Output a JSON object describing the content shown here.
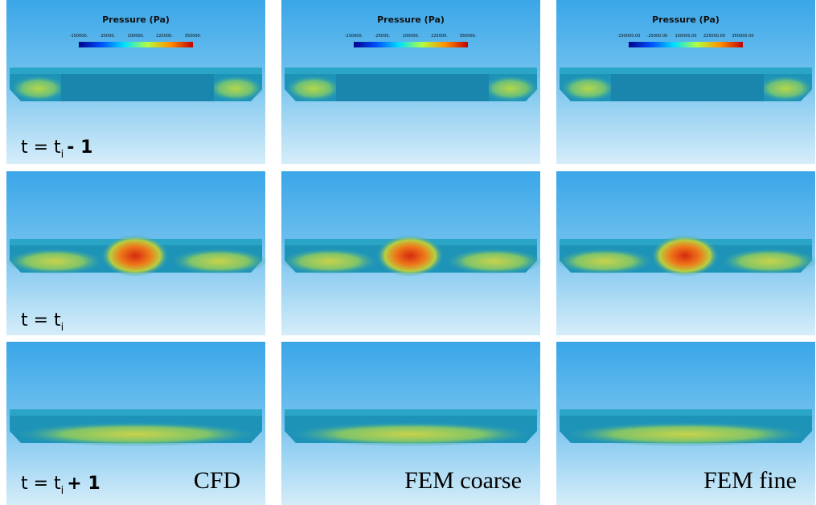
{
  "colorbars": [
    {
      "title": "Pressure (Pa)",
      "ticks": [
        "-150000.",
        "-25000.",
        "100000.",
        "225000.",
        "350000."
      ]
    },
    {
      "title": "Pressure (Pa)",
      "ticks": [
        "-150000.",
        "-25000.",
        "100000.",
        "225000.",
        "350000."
      ]
    },
    {
      "title": "Pressure (Pa)",
      "ticks": [
        "-150000.00",
        "-25000.00",
        "100000.00",
        "225000.00",
        "350000.00"
      ]
    }
  ],
  "row_labels": [
    {
      "main": "t = t",
      "sub": "i",
      "tail": "- 1"
    },
    {
      "main": "t = t",
      "sub": "i"
    },
    {
      "main": "t = t",
      "sub": "i",
      "tail": "+ 1"
    }
  ],
  "column_labels": [
    "CFD",
    "FEM coarse",
    "FEM fine"
  ]
}
